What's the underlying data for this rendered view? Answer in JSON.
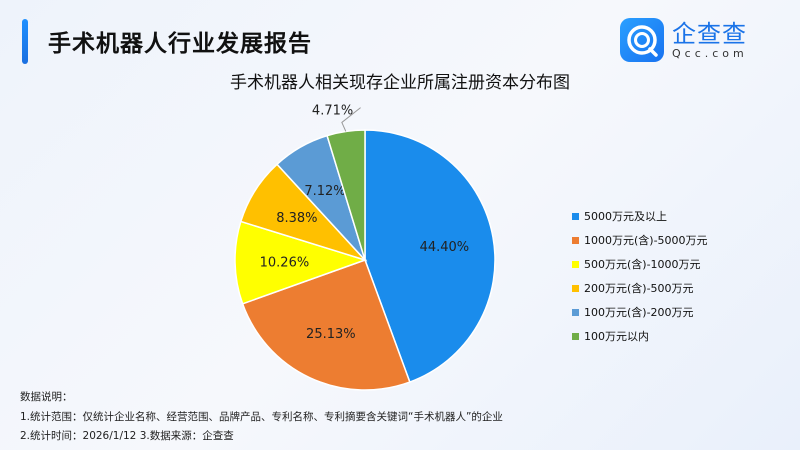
{
  "header": {
    "title": "手术机器人行业发展报告",
    "logo_cn": "企查查",
    "logo_en": "Qcc.com"
  },
  "chart_data": {
    "type": "pie",
    "title": "手术机器人相关现存企业所属注册资本分布图",
    "start": "top",
    "direction": "clockwise",
    "slices": [
      {
        "name": "5000万元及以上",
        "value": 44.4,
        "label": "44.40%",
        "color": "#1a8cec"
      },
      {
        "name": "1000万元(含)-5000万元",
        "value": 25.13,
        "label": "25.13%",
        "color": "#ed7d31"
      },
      {
        "name": "500万元(含)-1000万元",
        "value": 10.26,
        "label": "10.26%",
        "color": "#ffff00"
      },
      {
        "name": "200万元(含)-500万元",
        "value": 8.38,
        "label": "8.38%",
        "color": "#ffc000"
      },
      {
        "name": "100万元(含)-200万元",
        "value": 7.12,
        "label": "7.12%",
        "color": "#5b9bd5"
      },
      {
        "name": "100万元以内",
        "value": 4.71,
        "label": "4.71%",
        "color": "#70ad47"
      }
    ],
    "legend": "right"
  },
  "notes": {
    "heading": "数据说明：",
    "line1": "1.统计范围：仅统计企业名称、经营范围、品牌产品、专利名称、专利摘要含关键词“手术机器人”的企业",
    "line2": "2.统计时间：2026/1/12  3.数据来源：企查查"
  }
}
